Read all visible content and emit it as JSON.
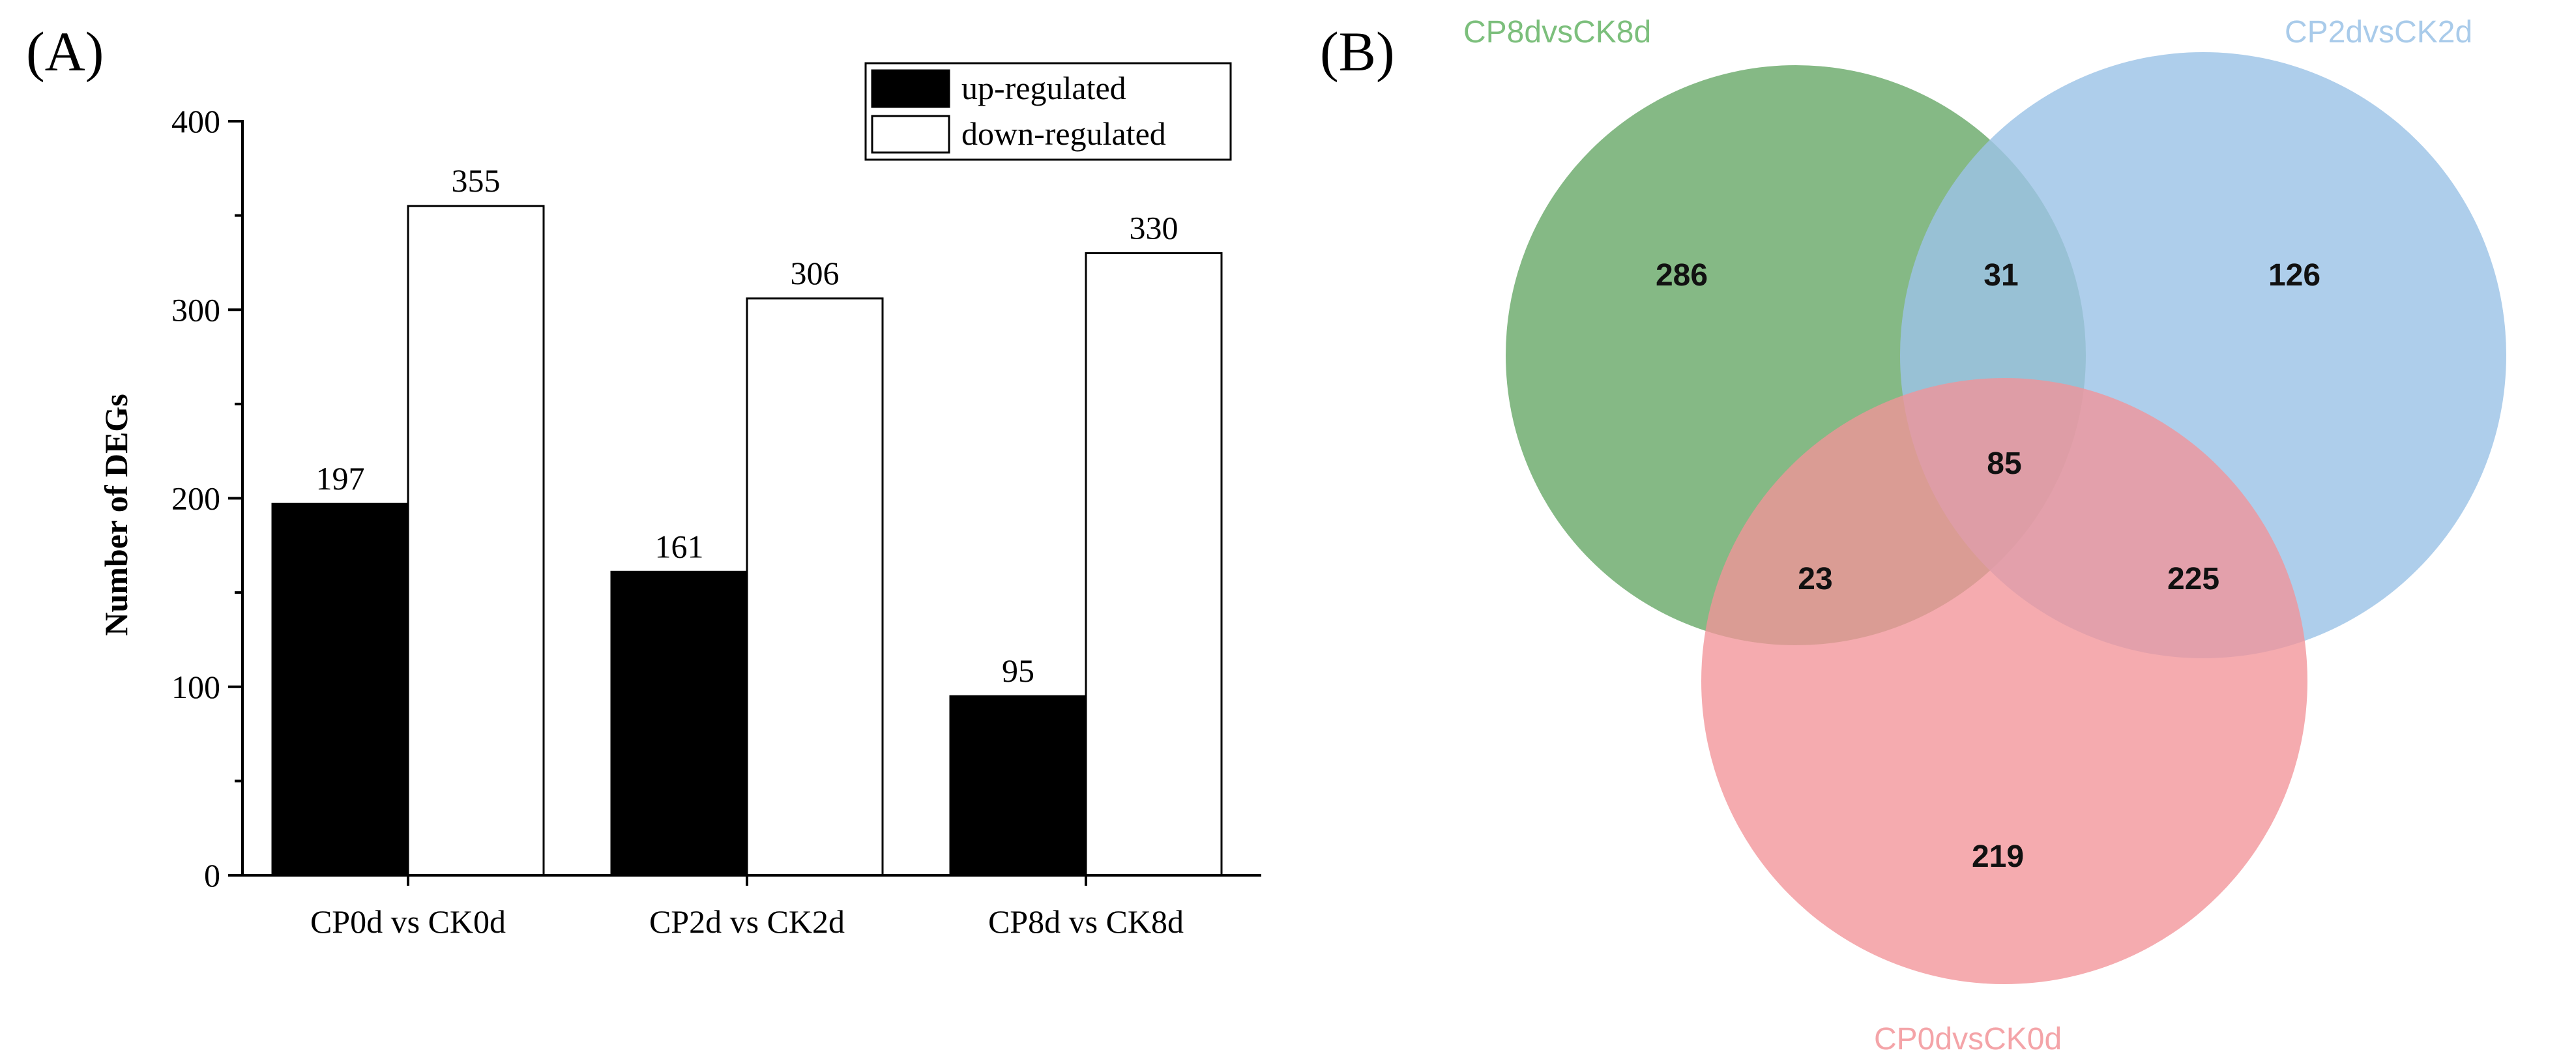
{
  "panels": {
    "a_label": "(A)",
    "b_label": "(B)"
  },
  "colors": {
    "up": "#000000",
    "down": "#ffffff",
    "venn_green": "#6aaa6a",
    "venn_blue": "#9cc3e6",
    "venn_pink": "#f29499",
    "green_label": "#7cbf7c",
    "blue_label": "#a9cbea",
    "pink_label": "#f4a4a8"
  },
  "chart_data": [
    {
      "type": "bar",
      "title": "",
      "xlabel": "",
      "ylabel": "Number of DEGs",
      "ylim": [
        0,
        400
      ],
      "yticks": [
        "0",
        "100",
        "200",
        "300",
        "400"
      ],
      "categories": [
        "CP0d vs CK0d",
        "CP2d vs CK2d",
        "CP8d vs CK8d"
      ],
      "series": [
        {
          "name": "up-regulated",
          "values": [
            197,
            161,
            95
          ]
        },
        {
          "name": "down-regulated",
          "values": [
            355,
            306,
            330
          ]
        }
      ],
      "legend": "top-right",
      "grid": false
    },
    {
      "type": "venn",
      "sets": [
        "CP8dvsCK8d",
        "CP2dvsCK2d",
        "CP0dvsCK0d"
      ],
      "regions": {
        "only_CP8dvsCK8d": "286",
        "only_CP2dvsCK2d": "126",
        "only_CP0dvsCK0d": "219",
        "CP8dvsCK8d_CP2dvsCK2d": "31",
        "CP8dvsCK8d_CP0dvsCK0d": "23",
        "CP2dvsCK2d_CP0dvsCK0d": "225",
        "all_three": "85"
      }
    }
  ]
}
